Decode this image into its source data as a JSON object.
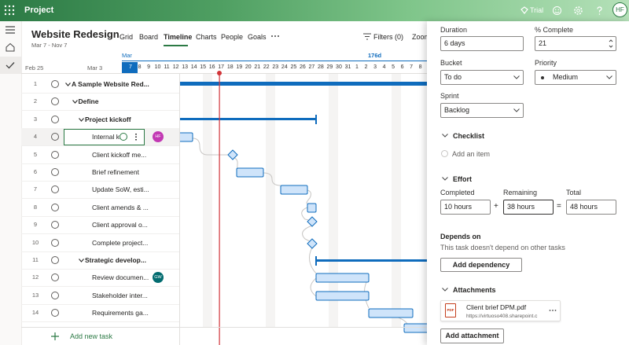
{
  "app": {
    "name": "Project",
    "trial": "Trial",
    "user_initials": "HF"
  },
  "project": {
    "title": "Website Redesign",
    "dates": "Mar 7 - Nov 7"
  },
  "tabs": [
    "Grid",
    "Board",
    "Timeline",
    "Charts",
    "People",
    "Goals"
  ],
  "active_tab": "Timeline",
  "toolbar": {
    "filters": "Filters (0)",
    "zoom": "Zoom"
  },
  "timeline": {
    "weeks": [
      "Feb 25",
      "Mar 3"
    ],
    "month": "Mar",
    "duration_marker": "176d",
    "days": [
      7,
      8,
      9,
      10,
      11,
      12,
      13,
      14,
      15,
      16,
      17,
      18,
      19,
      20,
      21,
      22,
      23,
      24,
      25,
      26,
      27,
      28,
      29,
      30,
      31,
      1,
      2,
      3,
      4,
      5,
      6,
      7,
      8
    ]
  },
  "tasks": [
    {
      "number": 1,
      "name": "A Sample Website Red..."
    },
    {
      "number": 2,
      "name": "Define"
    },
    {
      "number": 3,
      "name": "Project kickoff"
    },
    {
      "number": 4,
      "name": "Internal k",
      "assignee": "HF"
    },
    {
      "number": 5,
      "name": "Client kickoff me..."
    },
    {
      "number": 6,
      "name": "Brief refinement"
    },
    {
      "number": 7,
      "name": "Update SoW, esti..."
    },
    {
      "number": 8,
      "name": "Client amends & ..."
    },
    {
      "number": 9,
      "name": "Client approval o..."
    },
    {
      "number": 10,
      "name": "Complete project..."
    },
    {
      "number": 11,
      "name": "Strategic develop..."
    },
    {
      "number": 12,
      "name": "Review documen...",
      "assignee": "GW"
    },
    {
      "number": 13,
      "name": "Stakeholder inter..."
    },
    {
      "number": 14,
      "name": "Requirements ga..."
    }
  ],
  "add_task": "Add new task",
  "details": {
    "duration": {
      "label": "Duration",
      "value": "6 days"
    },
    "percent_complete": {
      "label": "% Complete",
      "value": 21
    },
    "bucket": {
      "label": "Bucket",
      "value": "To do"
    },
    "priority": {
      "label": "Priority",
      "value": "Medium"
    },
    "sprint": {
      "label": "Sprint",
      "value": "Backlog"
    },
    "checklist": {
      "title": "Checklist",
      "add_item": "Add an item"
    },
    "effort": {
      "title": "Effort",
      "completed": {
        "label": "Completed",
        "value": "10 hours"
      },
      "plus": "+",
      "remaining": {
        "label": "Remaining",
        "value": "38 hours"
      },
      "equals": "=",
      "total": {
        "label": "Total",
        "value": "48 hours"
      }
    },
    "depends_on": {
      "title": "Depends on",
      "text": "This task doesn't depend on other tasks",
      "button": "Add dependency"
    },
    "attachments": {
      "title": "Attachments",
      "icon_label": "PDF",
      "file_name": "Client brief DPM.pdf",
      "url": "https://virtuoso408.sharepoint.c",
      "button": "Add attachment"
    }
  }
}
